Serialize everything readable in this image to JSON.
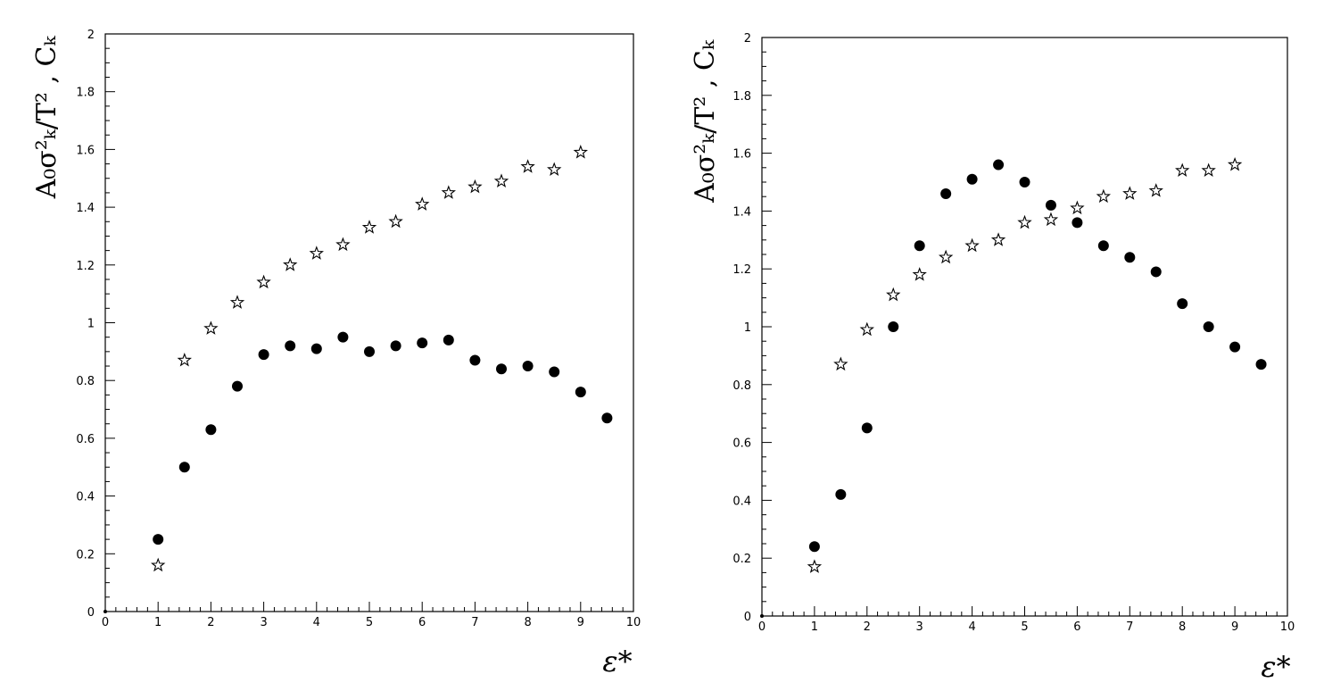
{
  "chart_data": [
    {
      "type": "scatter",
      "title": "",
      "xlabel": "ε*",
      "ylabel": "A₀σ²ₖ/T² , Cₖ",
      "xlim": [
        0,
        10
      ],
      "ylim": [
        0,
        2
      ],
      "x_ticks": [
        "0",
        "1",
        "2",
        "3",
        "4",
        "5",
        "6",
        "7",
        "8",
        "9",
        "10"
      ],
      "y_ticks": [
        "0",
        "0.2",
        "0.4",
        "0.6",
        "0.8",
        "1",
        "1.2",
        "1.4",
        "1.6",
        "1.8",
        "2"
      ],
      "grid": false,
      "series": [
        {
          "marker": "star",
          "color": "#000000",
          "points": [
            [
              1,
              0.16
            ],
            [
              1.5,
              0.87
            ],
            [
              2,
              0.98
            ],
            [
              2.5,
              1.07
            ],
            [
              3,
              1.14
            ],
            [
              3.5,
              1.2
            ],
            [
              4,
              1.24
            ],
            [
              4.5,
              1.27
            ],
            [
              5,
              1.33
            ],
            [
              5.5,
              1.35
            ],
            [
              6,
              1.41
            ],
            [
              6.5,
              1.45
            ],
            [
              7,
              1.47
            ],
            [
              7.5,
              1.49
            ],
            [
              8,
              1.54
            ],
            [
              8.5,
              1.53
            ],
            [
              9,
              1.59
            ]
          ]
        },
        {
          "marker": "filled-circle",
          "color": "#000000",
          "points": [
            [
              0,
              0.0
            ],
            [
              1,
              0.25
            ],
            [
              1.5,
              0.5
            ],
            [
              2,
              0.63
            ],
            [
              2.5,
              0.78
            ],
            [
              3,
              0.89
            ],
            [
              3.5,
              0.92
            ],
            [
              4,
              0.91
            ],
            [
              4.5,
              0.95
            ],
            [
              5,
              0.9
            ],
            [
              5.5,
              0.92
            ],
            [
              6,
              0.93
            ],
            [
              6.5,
              0.94
            ],
            [
              7,
              0.87
            ],
            [
              7.5,
              0.84
            ],
            [
              8,
              0.85
            ],
            [
              8.5,
              0.83
            ],
            [
              9,
              0.76
            ],
            [
              9.5,
              0.67
            ]
          ]
        }
      ]
    },
    {
      "type": "scatter",
      "title": "",
      "xlabel": "ε*",
      "ylabel": "A₀σ²ₖ/T² , Cₖ",
      "xlim": [
        0,
        10
      ],
      "ylim": [
        0,
        2
      ],
      "x_ticks": [
        "0",
        "1",
        "2",
        "3",
        "4",
        "5",
        "6",
        "7",
        "8",
        "9",
        "10"
      ],
      "y_ticks": [
        "0",
        "0.2",
        "0.4",
        "0.6",
        "0.8",
        "1",
        "1.2",
        "1.4",
        "1.6",
        "1.8",
        "2"
      ],
      "grid": false,
      "series": [
        {
          "marker": "star",
          "color": "#000000",
          "points": [
            [
              1,
              0.17
            ],
            [
              1.5,
              0.87
            ],
            [
              2,
              0.99
            ],
            [
              2.5,
              1.11
            ],
            [
              3,
              1.18
            ],
            [
              3.5,
              1.24
            ],
            [
              4,
              1.28
            ],
            [
              4.5,
              1.3
            ],
            [
              5,
              1.36
            ],
            [
              5.5,
              1.37
            ],
            [
              6,
              1.41
            ],
            [
              6.5,
              1.45
            ],
            [
              7,
              1.46
            ],
            [
              7.5,
              1.47
            ],
            [
              8,
              1.54
            ],
            [
              8.5,
              1.54
            ],
            [
              9,
              1.56
            ]
          ]
        },
        {
          "marker": "filled-circle",
          "color": "#000000",
          "points": [
            [
              0,
              0.0
            ],
            [
              1,
              0.24
            ],
            [
              1.5,
              0.42
            ],
            [
              2,
              0.65
            ],
            [
              2.5,
              1.0
            ],
            [
              3,
              1.28
            ],
            [
              3.5,
              1.46
            ],
            [
              4,
              1.51
            ],
            [
              4.5,
              1.56
            ],
            [
              5,
              1.5
            ],
            [
              5.5,
              1.42
            ],
            [
              6,
              1.36
            ],
            [
              6.5,
              1.28
            ],
            [
              7,
              1.24
            ],
            [
              7.5,
              1.19
            ],
            [
              8,
              1.08
            ],
            [
              8.5,
              1.0
            ],
            [
              9,
              0.93
            ],
            [
              9.5,
              0.87
            ]
          ]
        }
      ]
    }
  ]
}
